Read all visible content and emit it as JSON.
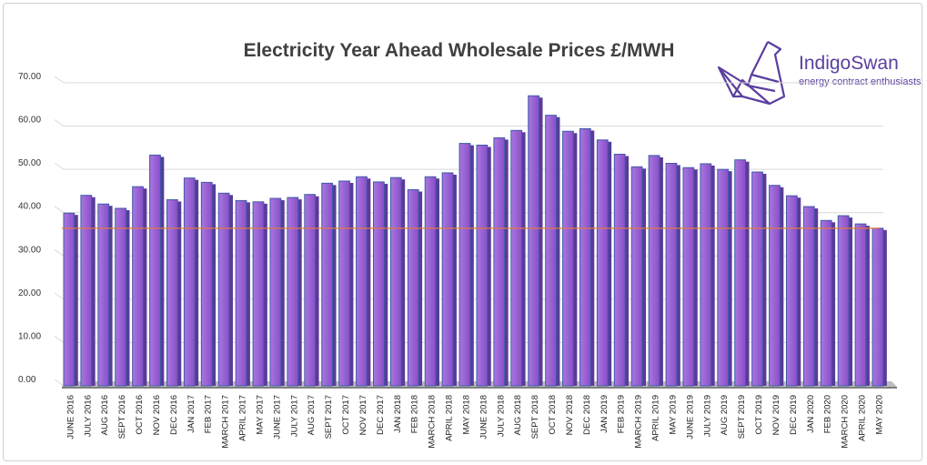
{
  "chart_data": {
    "type": "bar",
    "title": "Electricity Year Ahead Wholesale Prices £/MWH",
    "xlabel": "",
    "ylabel": "",
    "ylim": [
      0,
      70
    ],
    "yticks": [
      "0.00",
      "10.00",
      "20.00",
      "30.00",
      "40.00",
      "50.00",
      "60.00",
      "70.00"
    ],
    "grid": true,
    "reference_line": 36.4,
    "categories": [
      "JUNE 2016",
      "JULY 2016",
      "AUG 2016",
      "SEPT 2016",
      "OCT 2016",
      "NOV 2016",
      "DEC 2016",
      "JAN 2017",
      "FEB 2017",
      "MARCH 2017",
      "APRIL 2017",
      "MAY 2017",
      "JUNE 2017",
      "JULY 2017",
      "AUG 2017",
      "SEPT 2017",
      "OCT 2017",
      "NOV 2017",
      "DEC 2017",
      "JAN 2018",
      "FEB 2018",
      "MARCH 2018",
      "APRIL 2018",
      "MAY 2018",
      "JUNE 2018",
      "JULY 2018",
      "AUG 2018",
      "SEPT 2018",
      "OCT 2018",
      "NOV 2018",
      "DEC 2018",
      "JAN 2019",
      "FEB 2019",
      "MARCH 2019",
      "APRIL 2019",
      "MAY 2019",
      "JUNE 2019",
      "JULY 2019",
      "AUG 2019",
      "SEPT 2019",
      "OCT 2019",
      "NOV 2019",
      "DEC 2019",
      "JAN 2020",
      "FEB 2020",
      "MARCH 2020",
      "APRIL 2020",
      "MAY 2020"
    ],
    "values": [
      39.9,
      44.0,
      42.0,
      41.0,
      46.0,
      53.3,
      43.0,
      48.0,
      47.0,
      44.5,
      42.8,
      42.5,
      43.3,
      43.5,
      44.2,
      46.8,
      47.3,
      48.3,
      47.1,
      48.1,
      45.3,
      48.3,
      49.2,
      56.0,
      55.6,
      57.3,
      59.0,
      67.0,
      62.5,
      58.8,
      59.4,
      56.8,
      53.5,
      50.6,
      53.2,
      51.4,
      50.4,
      51.3,
      50.0,
      52.2,
      49.4,
      46.3,
      43.9,
      41.4,
      38.2,
      39.3,
      37.4,
      36.4
    ]
  },
  "colors": {
    "bar": "#8a4fc8",
    "bar_light": "#a877e0",
    "bar_edge": "#3f5aa8",
    "ref_line": "#e07b39",
    "grid": "#d9d9d9"
  },
  "logo": {
    "name": "IndigoSwan",
    "tagline": "energy contract enthusiasts",
    "icon": "origami-swan-icon"
  }
}
